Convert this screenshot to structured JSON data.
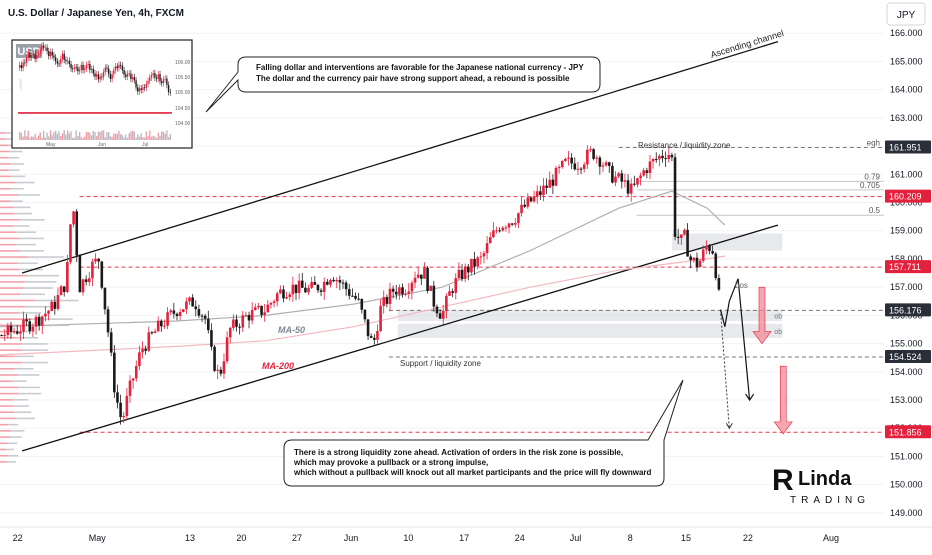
{
  "header": {
    "title": "U.S. Dollar / Japanese Yen, 4h, FXCM",
    "currency_button": "JPY"
  },
  "colors": {
    "up": "#e4213c",
    "down": "#1a1a1a",
    "ma50": "#b0b0b0",
    "ma200": "#f2b8bf",
    "level_red": "#e4213c",
    "level_gray": "#3a3a3a",
    "zone": "#c9ced6"
  },
  "chart_data": {
    "type": "candlestick",
    "symbol": "USDJPY",
    "timeframe": "4h",
    "ylim": [
      148.5,
      167.0
    ],
    "y_ticks": [
      149,
      150,
      151,
      152,
      153,
      154,
      155,
      156,
      157,
      158,
      159,
      160,
      161,
      162,
      163,
      164,
      165,
      166
    ],
    "y_tick_labels": [
      "149.000",
      "150.000",
      "151.000",
      "152.000",
      "153.000",
      "154.000",
      "155.000",
      "156.000",
      "157.000",
      "158.000",
      "159.000",
      "160.000",
      "161.000",
      "162.000",
      "163.000",
      "164.000",
      "165.000",
      "166.000"
    ],
    "x_ticks": [
      {
        "label": "22",
        "x": 0.02
      },
      {
        "label": "May",
        "x": 0.11
      },
      {
        "label": "13",
        "x": 0.215
      },
      {
        "label": "20",
        "x": 0.273
      },
      {
        "label": "27",
        "x": 0.336
      },
      {
        "label": "Jun",
        "x": 0.397
      },
      {
        "label": "10",
        "x": 0.462
      },
      {
        "label": "17",
        "x": 0.525
      },
      {
        "label": "24",
        "x": 0.588
      },
      {
        "label": "Jul",
        "x": 0.651
      },
      {
        "label": "8",
        "x": 0.713
      },
      {
        "label": "15",
        "x": 0.776
      },
      {
        "label": "22",
        "x": 0.846
      },
      {
        "label": "Aug",
        "x": 0.94
      }
    ],
    "path_keypoints": [
      [
        0.0,
        155.3
      ],
      [
        0.02,
        155.5
      ],
      [
        0.04,
        155.8
      ],
      [
        0.06,
        156.3
      ],
      [
        0.075,
        157.2
      ],
      [
        0.082,
        160.2
      ],
      [
        0.09,
        157.0
      ],
      [
        0.105,
        157.8
      ],
      [
        0.112,
        158.0
      ],
      [
        0.122,
        155.5
      ],
      [
        0.13,
        153.3
      ],
      [
        0.138,
        152.2
      ],
      [
        0.145,
        153.2
      ],
      [
        0.16,
        154.8
      ],
      [
        0.18,
        155.6
      ],
      [
        0.2,
        156.2
      ],
      [
        0.22,
        156.5
      ],
      [
        0.232,
        155.9
      ],
      [
        0.24,
        154.5
      ],
      [
        0.248,
        153.8
      ],
      [
        0.26,
        155.5
      ],
      [
        0.28,
        156.0
      ],
      [
        0.3,
        156.2
      ],
      [
        0.315,
        156.8
      ],
      [
        0.33,
        157.0
      ],
      [
        0.35,
        156.9
      ],
      [
        0.365,
        157.1
      ],
      [
        0.375,
        157.5
      ],
      [
        0.39,
        157.0
      ],
      [
        0.405,
        156.5
      ],
      [
        0.415,
        155.5
      ],
      [
        0.422,
        154.9
      ],
      [
        0.43,
        156.2
      ],
      [
        0.445,
        156.9
      ],
      [
        0.46,
        157.0
      ],
      [
        0.47,
        157.5
      ],
      [
        0.48,
        157.5
      ],
      [
        0.49,
        156.5
      ],
      [
        0.5,
        156.0
      ],
      [
        0.51,
        156.9
      ],
      [
        0.52,
        157.4
      ],
      [
        0.535,
        157.8
      ],
      [
        0.545,
        158.0
      ],
      [
        0.555,
        158.7
      ],
      [
        0.565,
        159.2
      ],
      [
        0.58,
        159.4
      ],
      [
        0.595,
        159.9
      ],
      [
        0.61,
        160.3
      ],
      [
        0.625,
        160.8
      ],
      [
        0.64,
        161.4
      ],
      [
        0.655,
        161.4
      ],
      [
        0.67,
        161.8
      ],
      [
        0.68,
        161.5
      ],
      [
        0.69,
        161.0
      ],
      [
        0.705,
        160.7
      ],
      [
        0.715,
        160.4
      ],
      [
        0.73,
        161.2
      ],
      [
        0.745,
        161.6
      ],
      [
        0.755,
        161.8
      ],
      [
        0.76,
        161.6
      ],
      [
        0.763,
        159.0
      ],
      [
        0.77,
        158.6
      ],
      [
        0.775,
        158.8
      ],
      [
        0.78,
        158.0
      ],
      [
        0.79,
        157.8
      ],
      [
        0.8,
        158.5
      ],
      [
        0.807,
        158.3
      ],
      [
        0.81,
        157.5
      ],
      [
        0.815,
        156.2
      ]
    ],
    "ma50_points": [
      [
        0.0,
        155.6
      ],
      [
        0.2,
        155.8
      ],
      [
        0.3,
        156.0
      ],
      [
        0.4,
        156.4
      ],
      [
        0.5,
        157.0
      ],
      [
        0.6,
        158.3
      ],
      [
        0.7,
        159.8
      ],
      [
        0.76,
        160.4
      ],
      [
        0.8,
        159.8
      ],
      [
        0.82,
        159.2
      ]
    ],
    "ma200_points": [
      [
        0.0,
        154.6
      ],
      [
        0.2,
        154.9
      ],
      [
        0.3,
        155.1
      ],
      [
        0.4,
        155.6
      ],
      [
        0.5,
        156.3
      ],
      [
        0.6,
        157.0
      ],
      [
        0.7,
        157.6
      ],
      [
        0.8,
        158.0
      ],
      [
        0.82,
        158.1
      ]
    ],
    "ascending_channel": {
      "upper": [
        [
          0.025,
          157.5
        ],
        [
          0.88,
          165.7
        ]
      ],
      "lower": [
        [
          0.025,
          151.2
        ],
        [
          0.88,
          159.2
        ]
      ],
      "label": "Ascending channel"
    },
    "levels": [
      {
        "name": "eqh",
        "value": 161.951,
        "label": "161.951",
        "tag": "eqh",
        "color": "gray"
      },
      {
        "name": "fib-0.79",
        "value": 160.75,
        "tag": "0.79",
        "color": "fib"
      },
      {
        "name": "fib-0.705",
        "value": 160.45,
        "tag": "0.705",
        "color": "fib"
      },
      {
        "name": "level-160",
        "value": 160.209,
        "label": "160.209",
        "tag": "",
        "color": "red"
      },
      {
        "name": "fib-0.5",
        "value": 159.55,
        "tag": "0.5",
        "color": "fib"
      },
      {
        "name": "level-157",
        "value": 157.711,
        "label": "157.711",
        "tag": "",
        "color": "red"
      },
      {
        "name": "level-156",
        "value": 156.176,
        "label": "156.176",
        "tag": "",
        "color": "dark"
      },
      {
        "name": "level-154",
        "value": 154.524,
        "label": "154.524",
        "tag": "",
        "color": "dark"
      },
      {
        "name": "level-151",
        "value": 151.856,
        "label": "151.856",
        "tag": "",
        "color": "red"
      }
    ],
    "zones": [
      {
        "name": "zone-upper",
        "y1": 158.3,
        "y2": 158.9,
        "x1": 0.76,
        "x2": 0.885
      },
      {
        "name": "zone-ob1",
        "y1": 155.8,
        "y2": 156.2,
        "x1": 0.45,
        "x2": 0.885,
        "tag": "ob"
      },
      {
        "name": "zone-ob2",
        "y1": 155.2,
        "y2": 155.7,
        "x1": 0.45,
        "x2": 0.885,
        "tag": "ob"
      }
    ],
    "annotations": {
      "resistance": "Resistance / liquidity zone",
      "support": "Support / liquidity zone",
      "ma50": "MA-50",
      "ma200": "MA-200",
      "bos": "bos"
    },
    "projection": [
      [
        0.815,
        156.2
      ],
      [
        0.82,
        155.6
      ],
      [
        0.825,
        156.5
      ],
      [
        0.835,
        157.3
      ],
      [
        0.848,
        153.0
      ]
    ],
    "projection_dotted": [
      [
        0.815,
        156.2
      ],
      [
        0.825,
        152.0
      ]
    ],
    "arrows": [
      [
        0.862,
        157.0,
        155.0
      ],
      [
        0.886,
        154.2,
        151.8
      ]
    ]
  },
  "callouts": {
    "top": {
      "line1": "Falling dollar and interventions are favorable for the Japanese national currency - JPY",
      "line2": "The dollar and the currency pair have strong support ahead, a rebound is possible"
    },
    "bottom": {
      "line1": "There is a strong liquidity zone ahead. Activation of orders in the risk zone is possible,",
      "line2": "which may provoke a pullback or a strong impulse,",
      "line3": "which without a pullback will knock out all market participants and the price will fly downward"
    }
  },
  "inset": {
    "title": "USD",
    "axis_labels": [
      "106.00",
      "105.50",
      "105.00",
      "104.50",
      "104.00"
    ],
    "x_labels": [
      "May",
      "Jun",
      "Jul"
    ],
    "side_text": "USDX"
  },
  "logo": {
    "text_top": "Linda",
    "text_bottom": "TRADING"
  }
}
